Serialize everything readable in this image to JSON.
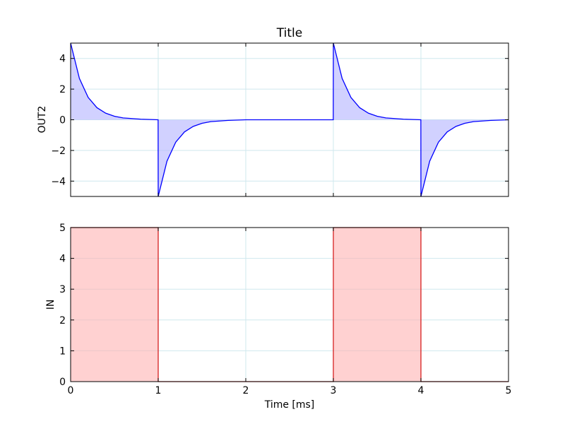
{
  "chart_data": [
    {
      "type": "area",
      "title": "Title",
      "xlabel": "",
      "ylabel": "OUT2",
      "xlim": [
        0,
        5
      ],
      "ylim": [
        -5,
        5
      ],
      "yticks": [
        -4,
        -2,
        0,
        2,
        4
      ],
      "ytick_labels": [
        "−4",
        "−2",
        "0",
        "2",
        "4"
      ],
      "xticks": [
        0,
        1,
        2,
        3,
        4,
        5
      ],
      "show_xtick_labels": false,
      "grid": true,
      "line_color": "#0000ff",
      "fill_color": "#b3b3ff",
      "series": [
        {
          "x": [
            0,
            0.1,
            0.2,
            0.3,
            0.4,
            0.5,
            0.6,
            0.8,
            0.999,
            1.0,
            1.1,
            1.2,
            1.3,
            1.4,
            1.5,
            1.6,
            1.8,
            2.0,
            2.999,
            3.0,
            3.1,
            3.2,
            3.3,
            3.4,
            3.5,
            3.6,
            3.8,
            3.999,
            4.0,
            4.1,
            4.2,
            4.3,
            4.4,
            4.5,
            4.6,
            4.8,
            5.0
          ],
          "y": [
            5,
            2.7,
            1.46,
            0.79,
            0.43,
            0.23,
            0.12,
            0.04,
            0,
            -5,
            -2.7,
            -1.46,
            -0.79,
            -0.43,
            -0.23,
            -0.12,
            -0.04,
            0,
            0,
            5,
            2.7,
            1.46,
            0.79,
            0.43,
            0.23,
            0.12,
            0.04,
            0,
            -5,
            -2.7,
            -1.46,
            -0.79,
            -0.43,
            -0.23,
            -0.12,
            -0.04,
            0
          ]
        }
      ]
    },
    {
      "type": "area",
      "title": "",
      "xlabel": "Time [ms]",
      "ylabel": "IN",
      "xlim": [
        0,
        5
      ],
      "ylim": [
        0,
        5
      ],
      "yticks": [
        0,
        1,
        2,
        3,
        4,
        5
      ],
      "ytick_labels": [
        "0",
        "1",
        "2",
        "3",
        "4",
        "5"
      ],
      "xticks": [
        0,
        1,
        2,
        3,
        4,
        5
      ],
      "xtick_labels": [
        "0",
        "1",
        "2",
        "3",
        "4",
        "5"
      ],
      "show_xtick_labels": true,
      "grid": true,
      "line_color": "#d62020",
      "fill_color": "#ffb3b3",
      "series": [
        {
          "x": [
            0,
            1,
            1,
            3,
            3,
            4,
            4,
            5
          ],
          "y": [
            5,
            5,
            0,
            0,
            5,
            5,
            0,
            0
          ]
        }
      ]
    }
  ]
}
